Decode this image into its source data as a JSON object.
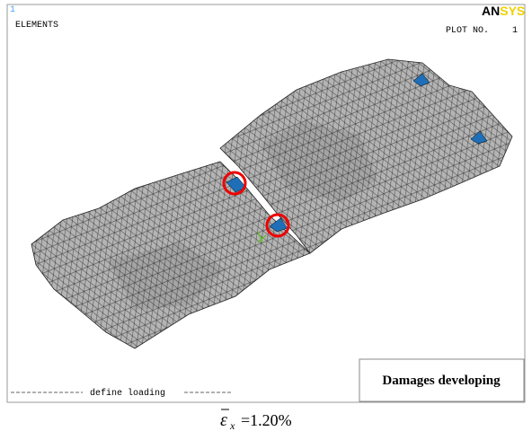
{
  "header": {
    "window_number": "1",
    "plot_type": "ELEMENTS",
    "logo_an": "AN",
    "logo_sys": "SYS",
    "plot_no_label": "PLOT NO.",
    "plot_no": "1"
  },
  "footer": {
    "status": "define loading"
  },
  "annotation": "Damages developing",
  "caption": {
    "symbol": "ε",
    "subscript": "x",
    "equals": "=1.20%"
  }
}
